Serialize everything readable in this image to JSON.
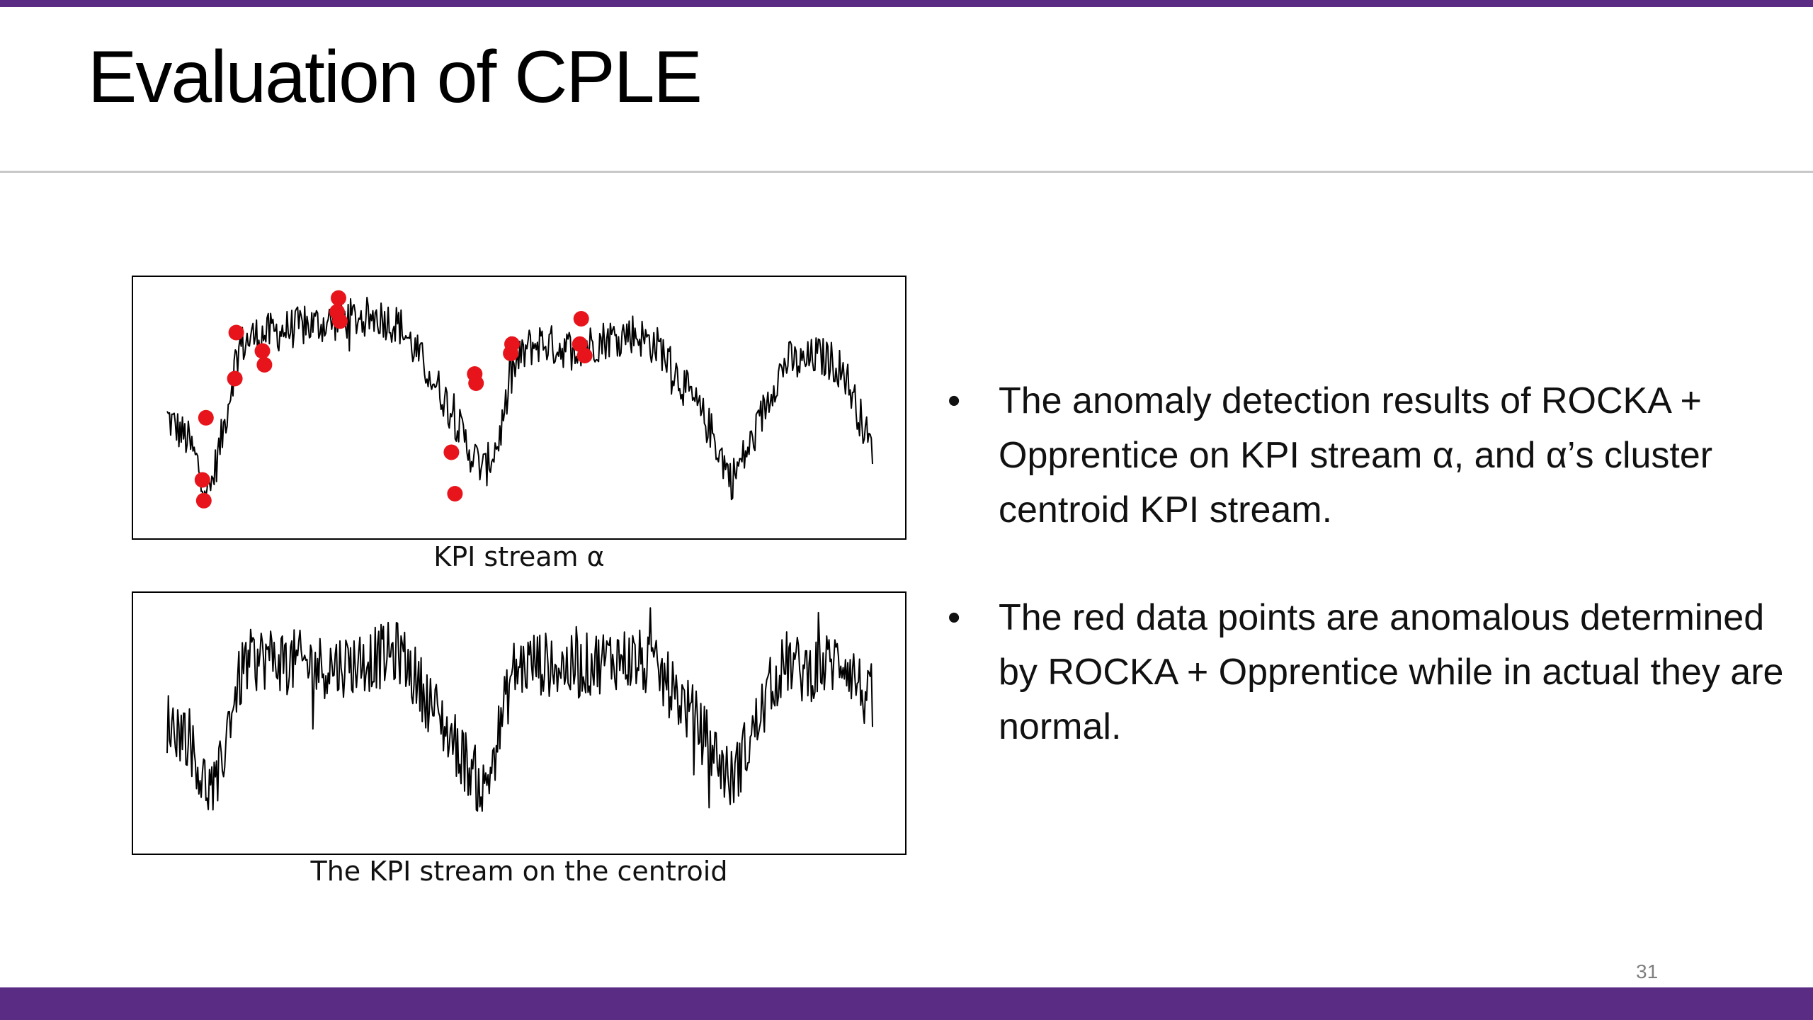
{
  "slide": {
    "title": "Evaluation of CPLE",
    "page_number": "31",
    "colors": {
      "accent_bar": "#5b2c83",
      "anomaly": "#e8141c",
      "series": "#000000"
    }
  },
  "figures": {
    "alpha_caption": "KPI stream α",
    "centroid_caption": "The KPI stream on the centroid"
  },
  "bullets": [
    {
      "marker": "•",
      "text": "The anomaly detection results of ROCKA + Opprentice on KPI stream α, and α’s cluster centroid KPI stream."
    },
    {
      "marker": "•",
      "text": "The red data points are anomalous determined by ROCKA + Opprentice while in actual they are normal."
    }
  ],
  "chart_data": [
    {
      "type": "line",
      "title": "",
      "caption": "KPI stream α",
      "xlabel": "",
      "ylabel": "",
      "axes_ticks": false,
      "grid": false,
      "xlim": [
        0,
        100
      ],
      "ylim": [
        0,
        100
      ],
      "series": [
        {
          "color": "#000000",
          "x": [
            0,
            3,
            6,
            8,
            10,
            12,
            15,
            18,
            22,
            26,
            30,
            33,
            36,
            40,
            43,
            45,
            47,
            49,
            51,
            53,
            55,
            57,
            60,
            63,
            66,
            70,
            74,
            77,
            80,
            83,
            86,
            88,
            90,
            92,
            94,
            96,
            100
          ],
          "y": [
            45,
            35,
            12,
            40,
            75,
            80,
            82,
            84,
            86,
            88,
            89,
            85,
            70,
            50,
            30,
            22,
            35,
            65,
            75,
            78,
            76,
            75,
            77,
            80,
            82,
            75,
            55,
            40,
            18,
            35,
            60,
            70,
            68,
            72,
            70,
            65,
            30
          ],
          "noise": 9
        }
      ],
      "anomalies": {
        "name": "anomalous points",
        "color": "#e8141c",
        "points": [
          {
            "x": 5.5,
            "y": 45
          },
          {
            "x": 5,
            "y": 18
          },
          {
            "x": 5.2,
            "y": 9
          },
          {
            "x": 9.8,
            "y": 82
          },
          {
            "x": 9.6,
            "y": 62
          },
          {
            "x": 13.5,
            "y": 74
          },
          {
            "x": 13.8,
            "y": 68
          },
          {
            "x": 24.3,
            "y": 97
          },
          {
            "x": 24.1,
            "y": 91
          },
          {
            "x": 24.5,
            "y": 87
          },
          {
            "x": 40.3,
            "y": 30
          },
          {
            "x": 40.8,
            "y": 12
          },
          {
            "x": 43.6,
            "y": 64
          },
          {
            "x": 43.8,
            "y": 60
          },
          {
            "x": 48.9,
            "y": 77
          },
          {
            "x": 48.7,
            "y": 73
          },
          {
            "x": 58.7,
            "y": 88
          },
          {
            "x": 58.5,
            "y": 77
          },
          {
            "x": 59.2,
            "y": 72
          }
        ]
      }
    },
    {
      "type": "line",
      "title": "",
      "caption": "The KPI stream on the centroid",
      "xlabel": "",
      "ylabel": "",
      "axes_ticks": false,
      "grid": false,
      "xlim": [
        0,
        100
      ],
      "ylim": [
        0,
        100
      ],
      "series": [
        {
          "color": "#000000",
          "x": [
            0,
            3,
            5,
            7,
            9,
            11,
            14,
            18,
            22,
            26,
            30,
            33,
            36,
            40,
            43,
            45,
            47,
            49,
            52,
            55,
            58,
            61,
            64,
            67,
            70,
            74,
            77,
            80,
            83,
            86,
            88,
            90,
            93,
            96,
            100
          ],
          "y": [
            50,
            45,
            25,
            20,
            55,
            75,
            78,
            76,
            74,
            75,
            78,
            80,
            65,
            45,
            30,
            20,
            45,
            72,
            76,
            74,
            73,
            76,
            78,
            76,
            70,
            55,
            40,
            25,
            45,
            68,
            76,
            72,
            74,
            78,
            55
          ],
          "noise": 14
        }
      ]
    }
  ]
}
